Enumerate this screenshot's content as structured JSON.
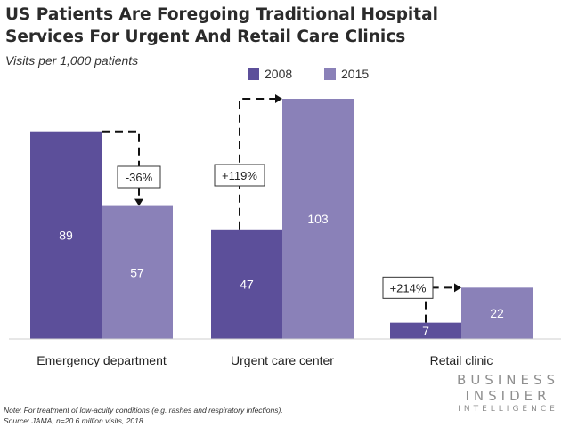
{
  "chart_data": {
    "type": "bar",
    "title_line1": "US Patients Are Foregoing Traditional Hospital",
    "title_line2": "Services For Urgent And Retail Care Clinics",
    "subtitle": "Visits per 1,000 patients",
    "categories": [
      "Emergency department",
      "Urgent care center",
      "Retail clinic"
    ],
    "series": [
      {
        "name": "2008",
        "color": "#5c4f9a",
        "values": [
          89,
          47,
          7
        ]
      },
      {
        "name": "2015",
        "color": "#8a81b8",
        "values": [
          57,
          103,
          22
        ]
      }
    ],
    "annotations": [
      "-36%",
      "+119%",
      "+214%"
    ],
    "ylim": [
      0,
      103
    ],
    "grid": false,
    "legend": "top-center"
  },
  "note_line1": "Note: For treatment of low-acuity conditions (e.g. rashes and respiratory infections).",
  "note_line2": "Source: JAMA, n=20.6 million visits, 2018",
  "brand": {
    "line1": "BUSINESS",
    "line2": "INSIDER",
    "line3": "INTELLIGENCE"
  }
}
